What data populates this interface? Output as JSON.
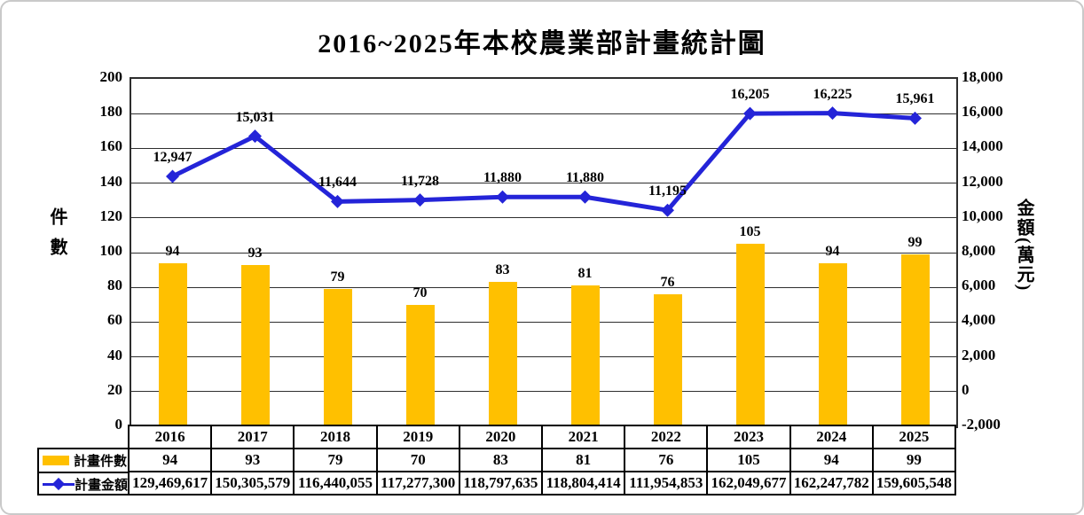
{
  "chart_data": {
    "type": "bar+line-combo",
    "title": "2016~2025年本校農業部計畫統計圖",
    "categories": [
      "2016",
      "2017",
      "2018",
      "2019",
      "2020",
      "2021",
      "2022",
      "2023",
      "2024",
      "2025"
    ],
    "series": [
      {
        "name": "計畫件數",
        "type": "bar",
        "axis": "left",
        "color": "#FFC000",
        "values": [
          94,
          93,
          79,
          70,
          83,
          81,
          76,
          105,
          94,
          99
        ]
      },
      {
        "name": "計畫金額",
        "type": "line",
        "axis": "right",
        "color": "#2424D8",
        "values": [
          12947,
          15031,
          11644,
          11728,
          11880,
          11880,
          11195,
          16205,
          16225,
          15961
        ],
        "point_labels": [
          "12,947",
          "15,031",
          "11,644",
          "11,728",
          "11,880",
          "11,880",
          "11,195",
          "16,205",
          "16,225",
          "15,961"
        ]
      }
    ],
    "left_axis": {
      "label": "件數",
      "min": 0,
      "max": 200,
      "step": 20
    },
    "right_axis": {
      "label": "金額(萬元)",
      "min": 0,
      "max": 18000,
      "step": 2000
    },
    "grid": "horizontal-on",
    "legend_position": "bottom-left-table",
    "table": {
      "rows": [
        {
          "legend": "計畫件數",
          "swatch": "bar-swatch-icon",
          "values": [
            "94",
            "93",
            "79",
            "70",
            "83",
            "81",
            "76",
            "105",
            "94",
            "99"
          ]
        },
        {
          "legend": "計畫金額",
          "swatch": "line-swatch-icon",
          "values": [
            "129,469,617",
            "150,305,579",
            "116,440,055",
            "117,277,300",
            "118,797,635",
            "118,804,414",
            "111,954,853",
            "162,049,677",
            "162,247,782",
            "159,605,548"
          ]
        }
      ]
    }
  }
}
